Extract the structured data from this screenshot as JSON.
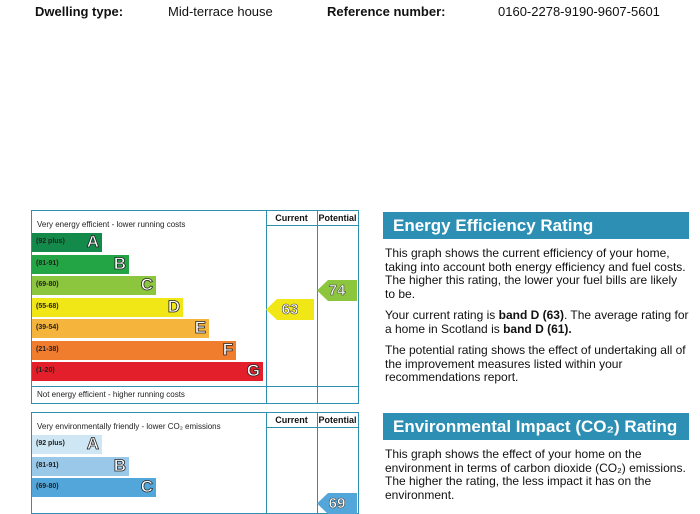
{
  "header": {
    "dwelling_type_label": "Dwelling type:",
    "dwelling_type_value": "Mid-terrace house",
    "reference_label": "Reference number:",
    "reference_value": "0160-2278-9190-9607-5601"
  },
  "energy_chart": {
    "top_text": "Very energy efficient - lower running costs",
    "bottom_text": "Not energy efficient - higher running costs",
    "col_current": "Current",
    "col_potential": "Potential",
    "bands": [
      {
        "range": "(92 plus)",
        "letter": "A",
        "color": "#138a4a"
      },
      {
        "range": "(81-91)",
        "letter": "B",
        "color": "#23a546"
      },
      {
        "range": "(69-80)",
        "letter": "C",
        "color": "#8cc63e"
      },
      {
        "range": "(55-68)",
        "letter": "D",
        "color": "#f2e716"
      },
      {
        "range": "(39-54)",
        "letter": "E",
        "color": "#f5b53c"
      },
      {
        "range": "(21-38)",
        "letter": "F",
        "color": "#ef7d2d"
      },
      {
        "range": "(1-20)",
        "letter": "G",
        "color": "#e21f2b"
      }
    ],
    "current": {
      "value": "63",
      "color": "#f2e716"
    },
    "potential": {
      "value": "74",
      "color": "#8cc63e"
    }
  },
  "env_chart": {
    "top_text": "Very environmentally friendly - lower CO₂ emissions",
    "col_current": "Current",
    "col_potential": "Potential",
    "bands": [
      {
        "range": "(92 plus)",
        "letter": "A",
        "color": "#cfe6f4"
      },
      {
        "range": "(81-91)",
        "letter": "B",
        "color": "#99c8e8"
      },
      {
        "range": "(69-80)",
        "letter": "C",
        "color": "#53a6da"
      }
    ],
    "potential_partial": "69"
  },
  "energy_panel": {
    "title": "Energy Efficiency Rating",
    "p1": "This graph shows the current efficiency of your home, taking into account both energy efficiency and fuel costs. The higher this rating, the lower your fuel bills are likely to be.",
    "p2_a": "Your current rating is ",
    "p2_b": "band D (63)",
    "p2_c": ". The average rating for a home in Scotland is ",
    "p2_d": "band D (61).",
    "p3": "The potential rating shows the effect of undertaking all of the improvement measures listed within your recommendations report."
  },
  "env_panel": {
    "title": "Environmental Impact (CO₂) Rating",
    "p1": "This graph shows the effect of your home on the environment in terms of carbon dioxide (CO₂) emissions. The higher the rating, the less impact it has on the environment."
  }
}
